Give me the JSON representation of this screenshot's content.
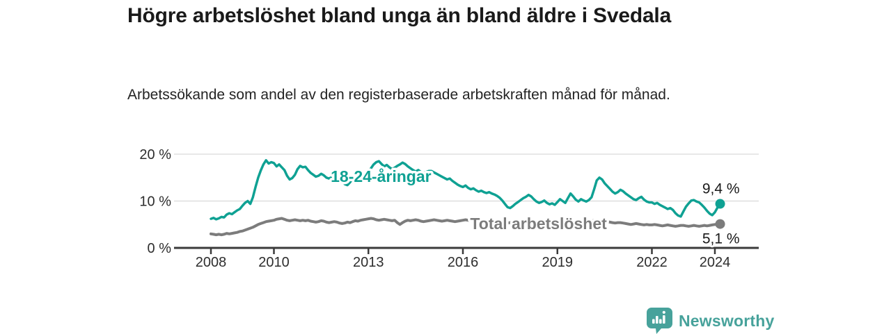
{
  "header": {
    "title": "Högre arbetslöshet bland unga än bland äldre i Svedala",
    "subtitle": "Arbetssökande som andel av den registerbaserade arbetskraften månad för månad."
  },
  "footer": {
    "brand": "Newsworthy"
  },
  "colors": {
    "youth_line": "#0fa193",
    "total_line": "#7c7c7c",
    "brand_teal": "#47a29b",
    "axis": "#3a3a3a",
    "grid": "#d9d9d9",
    "text_dark": "#1a1a1a"
  },
  "chart_data": {
    "type": "line",
    "title": "Högre arbetslöshet bland unga än bland äldre i Svedala",
    "subtitle": "Arbetssökande som andel av den registerbaserade arbetskraften månad för månad.",
    "x_unit": "month",
    "x_start_year": 2008,
    "x_end_label": "2024",
    "x_tick_years": [
      2008,
      2010,
      2013,
      2016,
      2019,
      2022,
      2024
    ],
    "ylim": [
      0,
      20
    ],
    "y_ticks": [
      {
        "value": 0,
        "label": "0 %"
      },
      {
        "value": 10,
        "label": "10 %"
      },
      {
        "value": 20,
        "label": "20 %"
      }
    ],
    "grid": "horizontal",
    "legend_position": "inline-labels",
    "series": [
      {
        "name": "18-24-åringar",
        "color": "#0fa193",
        "line_width": 3.5,
        "end_label": "9,4 %",
        "last_value": 9.4,
        "label_anchor": {
          "year": 2013.4,
          "pct": 14.1
        },
        "values": [
          6.2,
          6.4,
          6.1,
          6.3,
          6.6,
          6.5,
          7.1,
          7.4,
          7.2,
          7.6,
          8.0,
          8.3,
          9.0,
          9.6,
          10.0,
          9.4,
          10.8,
          13.0,
          15.0,
          16.5,
          17.8,
          18.7,
          18.0,
          18.3,
          18.1,
          17.4,
          17.8,
          17.2,
          16.6,
          15.4,
          14.6,
          14.9,
          15.6,
          16.8,
          17.5,
          17.2,
          17.3,
          16.6,
          16.0,
          15.6,
          15.2,
          15.4,
          15.8,
          15.5,
          15.0,
          14.8,
          15.1,
          15.3,
          15.0,
          14.6,
          14.2,
          13.6,
          13.4,
          14.0,
          14.8,
          15.4,
          15.9,
          16.2,
          15.8,
          16.0,
          16.3,
          17.0,
          17.8,
          18.3,
          18.5,
          17.9,
          17.4,
          17.7,
          17.2,
          16.8,
          17.1,
          17.5,
          17.8,
          18.2,
          17.9,
          17.4,
          17.0,
          16.6,
          16.3,
          16.6,
          16.2,
          16.0,
          16.2,
          16.4,
          16.4,
          16.1,
          15.8,
          15.5,
          15.2,
          14.9,
          14.6,
          14.8,
          14.3,
          13.9,
          13.5,
          13.2,
          13.0,
          13.3,
          12.8,
          12.5,
          12.7,
          12.3,
          12.0,
          12.2,
          11.9,
          11.7,
          11.9,
          11.6,
          11.4,
          11.1,
          10.7,
          10.1,
          9.4,
          8.7,
          8.5,
          8.9,
          9.4,
          9.8,
          10.2,
          10.6,
          10.9,
          11.3,
          11.0,
          10.4,
          9.9,
          9.6,
          9.8,
          10.1,
          9.6,
          9.3,
          9.5,
          9.2,
          9.8,
          10.4,
          10.0,
          9.6,
          10.6,
          11.6,
          11.0,
          10.3,
          9.9,
          10.4,
          10.1,
          9.9,
          10.2,
          10.8,
          12.5,
          14.4,
          15.0,
          14.6,
          13.8,
          13.2,
          12.6,
          12.0,
          11.6,
          11.9,
          12.4,
          12.1,
          11.6,
          11.2,
          10.8,
          10.4,
          10.2,
          10.6,
          10.9,
          10.3,
          9.9,
          9.7,
          9.7,
          9.4,
          9.6,
          9.2,
          8.9,
          8.6,
          8.3,
          8.5,
          8.1,
          7.4,
          6.9,
          6.7,
          7.8,
          8.8,
          9.5,
          10.1,
          10.2,
          9.9,
          9.7,
          9.2,
          8.6,
          7.9,
          7.3,
          7.0,
          7.6,
          8.6,
          9.4
        ]
      },
      {
        "name": "Total arbetslöshet",
        "color": "#7c7c7c",
        "line_width": 4,
        "end_label": "5,1 %",
        "last_value": 5.1,
        "label_anchor": {
          "year": 2018.4,
          "pct": 4.0
        },
        "values": [
          3.0,
          2.9,
          2.8,
          2.9,
          2.8,
          2.9,
          3.1,
          3.0,
          3.1,
          3.2,
          3.3,
          3.5,
          3.6,
          3.8,
          4.0,
          4.2,
          4.4,
          4.7,
          5.0,
          5.2,
          5.4,
          5.6,
          5.7,
          5.8,
          5.9,
          6.1,
          6.2,
          6.3,
          6.1,
          5.9,
          5.8,
          5.9,
          6.0,
          5.9,
          5.8,
          5.9,
          5.8,
          5.9,
          5.7,
          5.6,
          5.5,
          5.6,
          5.8,
          5.7,
          5.5,
          5.4,
          5.5,
          5.6,
          5.5,
          5.3,
          5.2,
          5.3,
          5.5,
          5.4,
          5.6,
          5.8,
          5.7,
          5.9,
          6.0,
          6.1,
          6.2,
          6.3,
          6.2,
          6.0,
          5.9,
          6.0,
          6.1,
          6.0,
          5.9,
          5.8,
          5.9,
          5.4,
          5.0,
          5.4,
          5.7,
          5.9,
          5.8,
          5.9,
          6.0,
          5.9,
          5.7,
          5.6,
          5.7,
          5.8,
          5.9,
          6.0,
          5.9,
          5.8,
          5.7,
          5.8,
          5.9,
          5.8,
          5.7,
          5.6,
          5.7,
          5.8,
          5.9,
          6.0,
          5.9,
          5.8,
          5.7,
          5.6,
          5.7,
          5.8,
          5.7,
          5.6,
          5.5,
          5.6,
          5.6,
          5.7,
          5.6,
          5.5,
          5.4,
          5.3,
          5.4,
          5.5,
          5.4,
          5.3,
          5.4,
          5.5,
          5.4,
          5.3,
          5.2,
          5.1,
          5.0,
          5.1,
          5.2,
          5.1,
          5.0,
          4.9,
          5.0,
          5.1,
          5.2,
          5.3,
          5.2,
          5.1,
          5.2,
          5.3,
          5.4,
          5.3,
          5.2,
          5.3,
          5.4,
          5.5,
          5.6,
          5.7,
          5.9,
          6.0,
          5.9,
          5.8,
          5.7,
          5.6,
          5.5,
          5.4,
          5.3,
          5.4,
          5.4,
          5.3,
          5.2,
          5.1,
          5.0,
          5.1,
          5.2,
          5.1,
          5.0,
          4.9,
          5.0,
          4.9,
          4.9,
          5.0,
          4.9,
          4.8,
          4.7,
          4.8,
          4.9,
          4.8,
          4.7,
          4.6,
          4.7,
          4.8,
          4.8,
          4.7,
          4.6,
          4.7,
          4.8,
          4.7,
          4.6,
          4.7,
          4.8,
          4.7,
          4.8,
          4.9,
          5.0,
          5.0,
          5.1
        ]
      }
    ]
  }
}
